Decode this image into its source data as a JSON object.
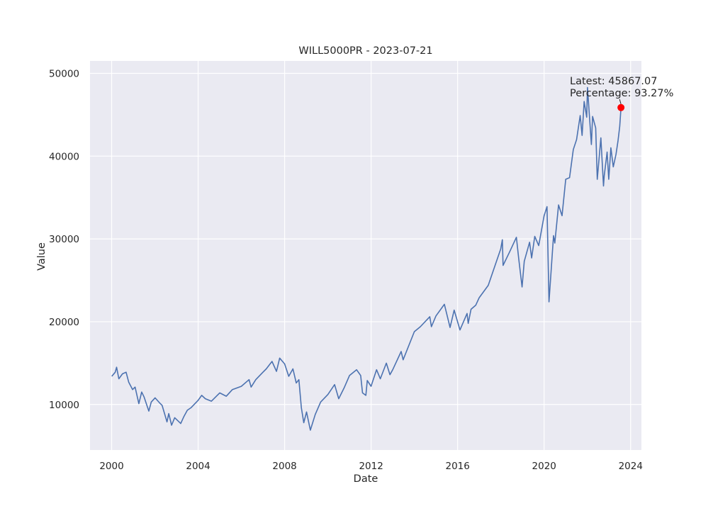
{
  "chart_data": {
    "type": "line",
    "title": "WILL5000PR - 2023-07-21",
    "xlabel": "Date",
    "ylabel": "Value",
    "xlim": [
      "1999-01-01",
      "2024-07-01"
    ],
    "ylim": [
      4500,
      51500
    ],
    "x_ticks": [
      "2000",
      "2004",
      "2008",
      "2012",
      "2016",
      "2020",
      "2024"
    ],
    "y_ticks": [
      "10000",
      "20000",
      "30000",
      "40000",
      "50000"
    ],
    "grid": true,
    "style": {
      "background": "#eaeaf2",
      "grid_color": "#ffffff",
      "line_color": "#4c72b0",
      "marker_color": "#ff0000"
    },
    "series": [
      {
        "x": [
          "2000-01-03",
          "2000-03-01",
          "2000-03-24",
          "2000-05-01",
          "2000-07-01",
          "2000-09-01",
          "2000-10-15",
          "2000-12-20",
          "2001-02-01",
          "2001-04-04",
          "2001-05-21",
          "2001-07-01",
          "2001-09-21",
          "2001-11-01",
          "2002-01-04",
          "2002-03-19",
          "2002-05-01",
          "2002-07-23",
          "2002-08-22",
          "2002-10-09",
          "2002-12-01",
          "2003-03-11",
          "2003-05-01",
          "2003-07-01",
          "2003-09-01",
          "2003-12-31",
          "2004-03-01",
          "2004-05-01",
          "2004-08-12",
          "2004-12-31",
          "2005-04-20",
          "2005-08-01",
          "2005-12-31",
          "2006-05-09",
          "2006-06-13",
          "2006-09-01",
          "2006-12-31",
          "2007-02-26",
          "2007-05-31",
          "2007-08-16",
          "2007-10-09",
          "2007-12-31",
          "2008-03-10",
          "2008-05-19",
          "2008-07-15",
          "2008-08-29",
          "2008-10-10",
          "2008-11-20",
          "2009-01-06",
          "2009-03-09",
          "2009-06-01",
          "2009-09-01",
          "2009-12-31",
          "2010-04-23",
          "2010-07-02",
          "2010-10-01",
          "2010-12-31",
          "2011-04-29",
          "2011-07-07",
          "2011-08-08",
          "2011-10-03",
          "2011-10-27",
          "2011-12-30",
          "2012-04-02",
          "2012-06-04",
          "2012-09-14",
          "2012-11-15",
          "2012-12-31",
          "2013-05-21",
          "2013-06-24",
          "2013-12-31",
          "2014-04-11",
          "2014-09-18",
          "2014-10-15",
          "2014-12-31",
          "2015-05-21",
          "2015-08-25",
          "2015-11-03",
          "2016-02-11",
          "2016-06-08",
          "2016-06-27",
          "2016-08-15",
          "2016-11-04",
          "2016-12-30",
          "2017-06-01",
          "2017-12-29",
          "2018-01-26",
          "2018-02-08",
          "2018-06-01",
          "2018-09-20",
          "2018-10-29",
          "2018-12-24",
          "2019-01-31",
          "2019-04-30",
          "2019-06-03",
          "2019-07-26",
          "2019-10-01",
          "2019-12-31",
          "2020-02-19",
          "2020-03-23",
          "2020-06-08",
          "2020-06-29",
          "2020-09-02",
          "2020-10-30",
          "2020-12-31",
          "2021-03-04",
          "2021-05-07",
          "2021-07-01",
          "2021-09-02",
          "2021-10-04",
          "2021-11-08",
          "2021-12-20",
          "2022-01-03",
          "2022-03-08",
          "2022-03-29",
          "2022-05-20",
          "2022-06-16",
          "2022-08-16",
          "2022-09-30",
          "2022-10-12",
          "2022-11-30",
          "2022-12-28",
          "2023-02-02",
          "2023-03-13",
          "2023-04-28",
          "2023-06-01",
          "2023-06-30",
          "2023-07-21"
        ],
        "values": [
          13400,
          13900,
          14500,
          13100,
          13700,
          13900,
          12700,
          11800,
          12100,
          10100,
          11500,
          10900,
          9200,
          10300,
          10800,
          10200,
          9900,
          7900,
          8900,
          7500,
          8400,
          7700,
          8500,
          9300,
          9600,
          10500,
          11100,
          10700,
          10400,
          11400,
          11000,
          11800,
          12200,
          13000,
          12100,
          13000,
          13900,
          14300,
          15200,
          14000,
          15600,
          14900,
          13400,
          14300,
          12600,
          13000,
          9600,
          7800,
          9100,
          6900,
          8800,
          10300,
          11200,
          12400,
          10700,
          12000,
          13500,
          14200,
          13500,
          11400,
          11100,
          12900,
          12200,
          14200,
          13100,
          15000,
          13600,
          14200,
          16400,
          15400,
          18800,
          19400,
          20600,
          19400,
          20700,
          22100,
          19300,
          21400,
          19000,
          21000,
          19800,
          21500,
          22000,
          22900,
          24400,
          28800,
          29900,
          26800,
          28500,
          30200,
          27600,
          24200,
          27300,
          29600,
          27700,
          30300,
          29200,
          32800,
          33900,
          22400,
          30400,
          29500,
          34100,
          32800,
          37200,
          37400,
          40800,
          42000,
          44900,
          42500,
          46600,
          44700,
          48300,
          41400,
          44800,
          43400,
          37200,
          42200,
          36400,
          37600,
          40500,
          37200,
          41000,
          38700,
          40200,
          41800,
          43600,
          45867.07
        ]
      }
    ],
    "annotation": {
      "latest_value": 45867.07,
      "latest_date": "2023-07-21",
      "line1": "Latest: 45867.07",
      "line2": "Percentage: 93.27%"
    }
  }
}
